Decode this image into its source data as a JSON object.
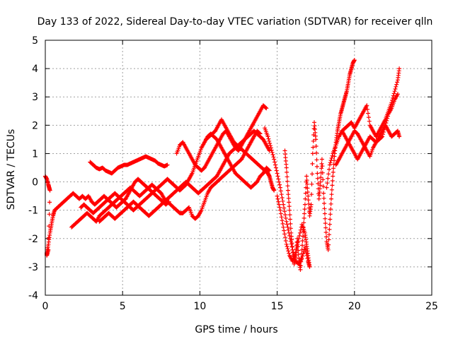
{
  "chart_data": {
    "type": "scatter",
    "title": "Day 133 of 2022, Sidereal Day-to-day VTEC variation (SDTVAR) for receiver qlln",
    "xlabel": "GPS time / hours",
    "ylabel": "SDTVAR / TECUs",
    "xlim": [
      0,
      25
    ],
    "ylim": [
      -4,
      5
    ],
    "xticks": [
      "0",
      "5",
      "10",
      "15",
      "20",
      "25"
    ],
    "yticks": [
      "-4",
      "-3",
      "-2",
      "-1",
      "0",
      "1",
      "2",
      "3",
      "4",
      "5"
    ],
    "grid": true,
    "marker": "+",
    "color": "#ff0000",
    "series": [
      {
        "x": [
          0.0,
          0.1,
          0.2,
          0.25,
          0.3,
          0.2,
          0.1,
          0.1,
          0.2,
          0.3,
          0.4,
          0.5,
          0.6,
          0.8,
          1.0,
          1.2,
          1.4,
          1.6,
          1.8,
          2.0,
          2.2,
          2.4,
          2.6,
          2.8,
          3.0,
          3.2,
          3.4,
          3.6,
          3.8,
          4.0,
          4.2,
          4.4,
          4.6,
          4.8,
          5.0,
          5.2,
          5.4,
          5.6,
          5.8,
          6.0,
          6.2,
          6.4,
          6.6,
          6.8,
          7.0,
          7.2,
          7.4,
          7.6,
          7.8,
          8.0
        ],
        "y": [
          0.2,
          0.1,
          -0.1,
          -0.2,
          -0.3,
          -2.4,
          -2.6,
          -2.5,
          -2.2,
          -1.8,
          -1.5,
          -1.2,
          -1.0,
          -0.9,
          -0.8,
          -0.7,
          -0.6,
          -0.5,
          -0.4,
          -0.5,
          -0.6,
          -0.5,
          -0.6,
          -0.5,
          -0.7,
          -0.8,
          -0.7,
          -0.6,
          -0.5,
          -0.6,
          -0.7,
          -0.8,
          -0.9,
          -0.8,
          -0.7,
          -0.6,
          -0.4,
          -0.2,
          0.0,
          0.1,
          0.0,
          -0.1,
          -0.2,
          -0.3,
          -0.4,
          -0.5,
          -0.6,
          -0.7,
          -0.8,
          -0.7
        ]
      },
      {
        "x": [
          2.9,
          3.1,
          3.3,
          3.5,
          3.7,
          3.9,
          4.1,
          4.3,
          4.5,
          4.7,
          4.9,
          5.1,
          5.3,
          5.5,
          5.7,
          5.9,
          6.1,
          6.3,
          6.5,
          6.7,
          6.9,
          7.1,
          7.3,
          7.5,
          7.7,
          7.9
        ],
        "y": [
          0.7,
          0.6,
          0.5,
          0.45,
          0.5,
          0.4,
          0.35,
          0.3,
          0.4,
          0.5,
          0.55,
          0.6,
          0.6,
          0.65,
          0.7,
          0.75,
          0.8,
          0.85,
          0.9,
          0.85,
          0.8,
          0.75,
          0.65,
          0.6,
          0.55,
          0.6
        ]
      },
      {
        "x": [
          1.7,
          1.9,
          2.1,
          2.3,
          2.5,
          2.7,
          2.9,
          3.1,
          3.3,
          3.5,
          3.7,
          3.9,
          4.1,
          4.3,
          4.5,
          4.7,
          4.9,
          5.1,
          5.3,
          5.5,
          5.7,
          5.9,
          6.1,
          6.3,
          6.5,
          6.7,
          6.9,
          7.1,
          7.3,
          7.5,
          7.7,
          7.9,
          8.1,
          8.3,
          8.5,
          8.7,
          8.9,
          9.1,
          9.3,
          9.5,
          9.7,
          9.9,
          10.1,
          10.3,
          10.5,
          10.7,
          10.9,
          11.1,
          11.3,
          11.5,
          11.7,
          11.9,
          12.1,
          12.3,
          12.5,
          12.7,
          12.9,
          13.1,
          13.3,
          13.5,
          13.7,
          13.9
        ],
        "y": [
          -1.6,
          -1.5,
          -1.4,
          -1.3,
          -1.2,
          -1.1,
          -1.2,
          -1.3,
          -1.4,
          -1.2,
          -1.1,
          -1.0,
          -0.9,
          -0.8,
          -0.7,
          -0.6,
          -0.5,
          -0.4,
          -0.3,
          -0.2,
          -0.3,
          -0.4,
          -0.5,
          -0.4,
          -0.3,
          -0.2,
          -0.1,
          -0.2,
          -0.3,
          -0.4,
          -0.6,
          -0.7,
          -0.8,
          -0.9,
          -1.0,
          -1.1,
          -1.1,
          -1.0,
          -0.9,
          -1.2,
          -1.3,
          -1.2,
          -1.0,
          -0.7,
          -0.4,
          -0.2,
          -0.1,
          0.0,
          0.1,
          0.2,
          0.3,
          0.4,
          0.5,
          0.6,
          0.7,
          0.8,
          1.0,
          1.2,
          1.4,
          1.6,
          1.8,
          1.7
        ]
      },
      {
        "x": [
          2.3,
          2.5,
          2.7,
          2.9,
          3.1,
          3.3,
          3.5,
          3.7,
          3.9,
          4.1,
          4.3,
          4.5,
          4.7,
          4.9,
          5.1,
          5.3,
          5.5,
          5.7,
          5.9,
          6.1,
          6.3,
          6.5,
          6.7,
          6.9,
          7.1,
          7.3,
          7.5,
          7.7,
          7.9,
          8.1,
          8.3,
          8.5,
          8.7,
          8.9,
          9.1,
          9.3,
          9.5,
          9.7,
          9.9,
          10.1,
          10.3,
          10.5,
          10.7,
          10.9,
          11.1,
          11.3,
          11.5,
          11.7,
          11.9,
          12.1,
          12.3,
          12.5,
          12.7,
          12.9,
          13.1,
          13.3,
          13.5,
          13.7,
          13.9,
          14.1,
          14.3,
          14.5
        ],
        "y": [
          -0.9,
          -0.8,
          -0.9,
          -1.0,
          -1.1,
          -1.0,
          -0.9,
          -0.8,
          -0.7,
          -0.6,
          -0.5,
          -0.4,
          -0.5,
          -0.6,
          -0.7,
          -0.8,
          -0.9,
          -1.0,
          -0.9,
          -0.8,
          -0.7,
          -0.6,
          -0.5,
          -0.4,
          -0.3,
          -0.2,
          -0.1,
          0.0,
          0.1,
          0.0,
          -0.1,
          -0.2,
          -0.3,
          -0.2,
          -0.1,
          0.1,
          0.3,
          0.6,
          0.9,
          1.2,
          1.4,
          1.6,
          1.7,
          1.6,
          1.5,
          1.3,
          1.1,
          0.9,
          0.7,
          0.5,
          0.3,
          0.2,
          0.1,
          0.0,
          -0.1,
          -0.2,
          -0.1,
          0.0,
          0.2,
          0.3,
          0.5,
          0.4
        ]
      },
      {
        "x": [
          3.5,
          3.7,
          3.9,
          4.1,
          4.3,
          4.5,
          4.7,
          4.9,
          5.1,
          5.3,
          5.5,
          5.7,
          5.9,
          6.1,
          6.3,
          6.5,
          6.7,
          6.9,
          7.1,
          7.3,
          7.5,
          7.7,
          7.9,
          8.1,
          8.3,
          8.5,
          8.7,
          8.9,
          9.1,
          9.3,
          9.5,
          9.7,
          9.9,
          10.1,
          10.3,
          10.5,
          10.7,
          10.9,
          11.1,
          11.3,
          11.5,
          11.7,
          11.9,
          12.1,
          12.3,
          12.5,
          12.7,
          12.9,
          13.1,
          13.3,
          13.5,
          13.7,
          13.9,
          14.1,
          14.3,
          14.5
        ],
        "y": [
          -1.4,
          -1.3,
          -1.2,
          -1.1,
          -1.2,
          -1.3,
          -1.2,
          -1.1,
          -1.0,
          -0.9,
          -0.8,
          -0.7,
          -0.8,
          -0.9,
          -1.0,
          -1.1,
          -1.2,
          -1.1,
          -1.0,
          -0.9,
          -0.8,
          -0.7,
          -0.6,
          -0.5,
          -0.4,
          -0.3,
          -0.2,
          -0.1,
          0.0,
          -0.1,
          -0.2,
          -0.3,
          -0.4,
          -0.3,
          -0.2,
          -0.1,
          0.0,
          0.1,
          0.2,
          0.4,
          0.6,
          0.8,
          1.0,
          1.1,
          1.2,
          1.3,
          1.4,
          1.5,
          1.6,
          1.7,
          1.8,
          1.7,
          1.6,
          1.5,
          1.3,
          1.1
        ]
      },
      {
        "x": [
          8.5,
          8.7,
          8.9,
          9.1,
          9.3,
          9.5,
          9.7,
          9.9,
          10.1,
          10.3,
          10.5,
          10.7,
          10.9,
          11.1,
          11.3,
          11.5,
          11.7,
          11.9,
          12.1,
          12.3,
          12.5,
          12.7,
          12.9,
          13.1,
          13.3,
          13.5,
          13.7,
          13.9,
          14.1,
          14.3
        ],
        "y": [
          1.0,
          1.3,
          1.4,
          1.2,
          1.0,
          0.8,
          0.6,
          0.5,
          0.4,
          0.5,
          0.7,
          0.9,
          1.1,
          1.3,
          1.5,
          1.7,
          1.8,
          1.6,
          1.4,
          1.2,
          1.1,
          1.3,
          1.5,
          1.7,
          1.9,
          2.1,
          2.3,
          2.5,
          2.7,
          2.6
        ]
      },
      {
        "x": [
          10.4,
          10.6,
          10.8,
          11.0,
          11.2,
          11.4,
          11.6,
          11.8,
          12.0,
          12.2,
          12.4,
          12.6,
          12.8,
          13.0,
          13.2,
          13.4,
          13.6,
          13.8,
          14.0,
          14.2,
          14.4,
          14.5,
          14.6,
          14.7,
          14.8
        ],
        "y": [
          1.5,
          1.6,
          1.7,
          1.8,
          2.0,
          2.2,
          2.0,
          1.8,
          1.6,
          1.4,
          1.3,
          1.2,
          1.1,
          1.0,
          0.9,
          0.8,
          0.7,
          0.6,
          0.5,
          0.4,
          0.3,
          0.2,
          0.0,
          -0.2,
          -0.3
        ]
      },
      {
        "x": [
          14.2,
          14.4,
          14.6,
          14.8,
          15.0,
          15.2,
          15.4,
          15.6,
          15.8,
          16.0,
          16.2,
          16.4,
          16.6,
          16.8,
          17.0,
          17.1,
          17.0,
          16.9,
          16.8,
          16.6,
          16.4,
          16.2,
          16.0,
          15.8,
          15.6,
          15.4,
          15.2,
          15.0
        ],
        "y": [
          1.9,
          1.6,
          1.2,
          0.8,
          0.3,
          -0.2,
          -0.8,
          -1.4,
          -1.9,
          -2.4,
          -2.8,
          -2.9,
          -2.7,
          -2.3,
          -2.8,
          -3.0,
          -2.6,
          -2.2,
          -1.8,
          -1.5,
          -2.0,
          -2.5,
          -2.8,
          -2.6,
          -2.2,
          -1.6,
          -1.0,
          -0.5
        ]
      },
      {
        "x": [
          15.5,
          15.6,
          15.7,
          15.8,
          15.9,
          16.0,
          16.1,
          16.2,
          16.3,
          16.4,
          16.5,
          16.6,
          16.7,
          16.8,
          16.9,
          17.0,
          17.1,
          17.2,
          17.3,
          17.4,
          17.5,
          17.6,
          17.7,
          17.8,
          17.9,
          18.0,
          18.1,
          18.2,
          18.3,
          18.4,
          18.5,
          18.6,
          18.7,
          18.8,
          18.9,
          19.0,
          19.1,
          19.2,
          19.3,
          19.4,
          19.5,
          19.6,
          19.7,
          19.8,
          19.9,
          20.0
        ],
        "y": [
          1.1,
          0.5,
          -0.3,
          -1.0,
          -1.8,
          -2.4,
          -2.9,
          -2.6,
          -2.0,
          -2.7,
          -3.1,
          -2.4,
          -1.6,
          -0.8,
          0.2,
          -0.5,
          -1.2,
          -0.8,
          1.0,
          2.1,
          1.5,
          0.3,
          -0.6,
          0.0,
          0.8,
          -0.4,
          -1.3,
          -2.1,
          -2.4,
          -1.5,
          -0.6,
          0.2,
          0.9,
          1.4,
          1.8,
          2.1,
          2.4,
          2.6,
          2.8,
          3.0,
          3.2,
          3.5,
          3.8,
          4.0,
          4.2,
          4.3
        ]
      },
      {
        "x": [
          18.2,
          18.4,
          18.6,
          18.8,
          19.0,
          19.2,
          19.4,
          19.6,
          19.8,
          20.0,
          20.2,
          20.4,
          20.6,
          20.8,
          21.0,
          21.2,
          21.4,
          21.6,
          21.8,
          22.0,
          22.2,
          22.4,
          22.6,
          22.8,
          22.9
        ],
        "y": [
          -0.2,
          0.6,
          1.0,
          1.3,
          1.6,
          1.8,
          1.9,
          2.0,
          2.1,
          1.9,
          2.1,
          2.3,
          2.5,
          2.7,
          2.0,
          1.8,
          1.6,
          1.8,
          2.0,
          2.2,
          2.5,
          2.8,
          3.2,
          3.6,
          4.0
        ]
      },
      {
        "x": [
          18.8,
          19.0,
          19.2,
          19.4,
          19.6,
          19.8,
          20.0,
          20.2,
          20.4,
          20.6,
          20.8,
          21.0,
          21.2,
          21.4,
          21.6,
          21.8,
          22.0,
          22.2,
          22.4,
          22.6,
          22.8,
          22.9
        ],
        "y": [
          0.6,
          0.8,
          1.0,
          1.2,
          1.4,
          1.2,
          1.0,
          0.8,
          1.0,
          1.2,
          1.4,
          1.6,
          1.5,
          1.4,
          1.6,
          1.8,
          2.0,
          1.8,
          1.6,
          1.7,
          1.8,
          1.6
        ]
      },
      {
        "x": [
          19.2,
          19.4,
          19.6,
          19.8,
          20.0,
          20.2,
          20.4,
          20.6,
          20.8,
          21.0,
          21.2,
          21.4,
          21.6,
          21.8,
          22.0,
          22.2,
          22.4,
          22.6,
          22.8
        ],
        "y": [
          1.8,
          1.6,
          1.4,
          1.6,
          1.8,
          1.7,
          1.5,
          1.3,
          1.1,
          0.9,
          1.2,
          1.4,
          1.5,
          1.6,
          2.0,
          2.4,
          2.6,
          2.9,
          3.1
        ]
      }
    ]
  }
}
